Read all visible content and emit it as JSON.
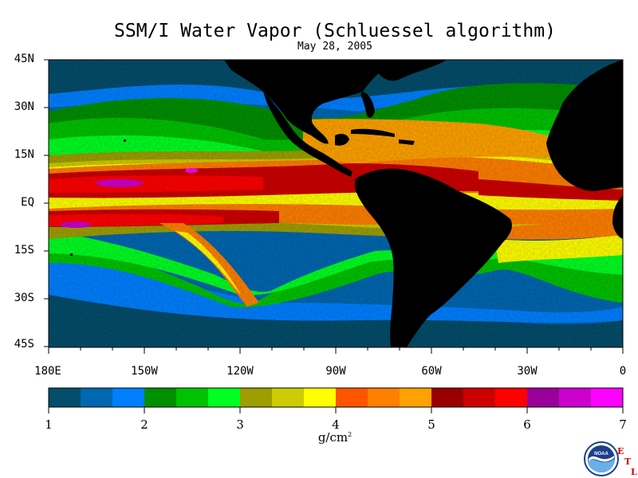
{
  "title": "SSM/I Water Vapor (Schluessel algorithm)",
  "subtitle": "May 28, 2005",
  "map": {
    "lat_labels": [
      "45N",
      "30N",
      "15N",
      "EQ",
      "15S",
      "30S",
      "45S"
    ],
    "lon_labels": [
      "180E",
      "150W",
      "120W",
      "90W",
      "60W",
      "30W",
      "0"
    ],
    "lat_range": [
      -45,
      45
    ],
    "lon_range": [
      -180,
      0
    ]
  },
  "colorbar": {
    "tick_labels": [
      "1",
      "2",
      "3",
      "4",
      "5",
      "6",
      "7"
    ],
    "range": [
      1,
      7
    ],
    "units_base": "g/cm",
    "units_exp": "2",
    "colors": [
      "#044d6b",
      "#0067b0",
      "#007fff",
      "#008f00",
      "#00c200",
      "#00ff22",
      "#9e9e00",
      "#cccc00",
      "#ffff00",
      "#ff5500",
      "#ff7f00",
      "#ffa200",
      "#9a0000",
      "#cc0000",
      "#ff0000",
      "#990099",
      "#cc00cc",
      "#ff00ff"
    ]
  },
  "logo": {
    "text": "NOAA",
    "etl_letters": [
      "E",
      "T",
      "L"
    ]
  }
}
